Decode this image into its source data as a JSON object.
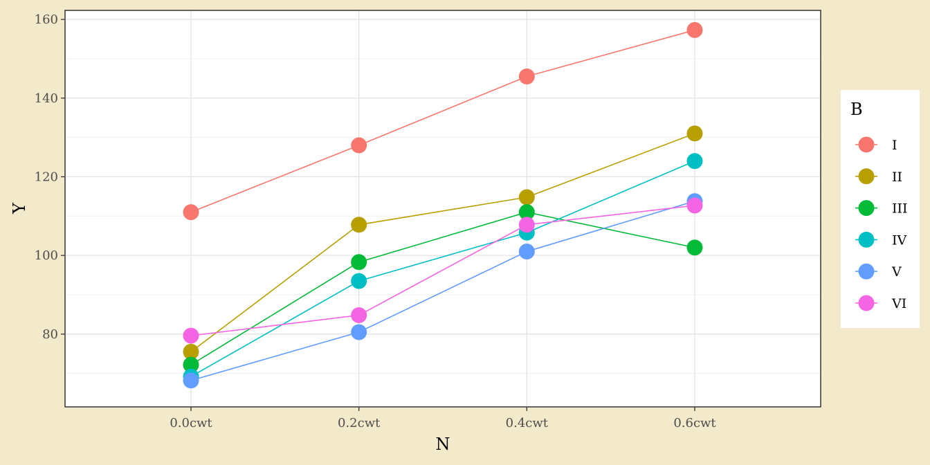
{
  "chart_data": {
    "type": "line",
    "xlabel": "N",
    "ylabel": "Y",
    "categories": [
      "0.0cwt",
      "0.2cwt",
      "0.4cwt",
      "0.6cwt"
    ],
    "y_ticks": [
      80,
      100,
      120,
      140,
      160
    ],
    "ylim": [
      61.5,
      162.3
    ],
    "grid": true,
    "legend": {
      "title": "B",
      "placement": "right"
    },
    "series": [
      {
        "name": "I",
        "color": "#F8766D",
        "values": [
          111,
          128,
          145.5,
          157.3
        ]
      },
      {
        "name": "II",
        "color": "#B79F00",
        "values": [
          75.5,
          107.8,
          114.8,
          131
        ]
      },
      {
        "name": "III",
        "color": "#00BA38",
        "values": [
          72.2,
          98.3,
          111,
          102
        ]
      },
      {
        "name": "IV",
        "color": "#00BFC4",
        "values": [
          69.2,
          93.5,
          105.8,
          124
        ]
      },
      {
        "name": "V",
        "color": "#619CFF",
        "values": [
          68.2,
          80.5,
          101,
          113.8
        ]
      },
      {
        "name": "VI",
        "color": "#F564E3",
        "values": [
          79.6,
          84.8,
          107.8,
          112.7
        ]
      }
    ]
  }
}
